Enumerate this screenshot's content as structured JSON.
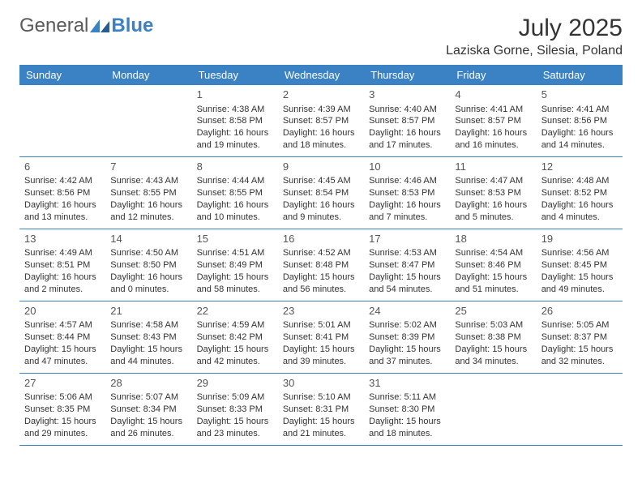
{
  "logo": {
    "text1": "General",
    "text2": "Blue"
  },
  "title": "July 2025",
  "location": "Laziska Gorne, Silesia, Poland",
  "colors": {
    "header_bg": "#3b82c4",
    "header_text": "#ffffff",
    "row_border": "#3b82c4",
    "text": "#333333",
    "muted": "#555555"
  },
  "typography": {
    "title_fontsize": 30,
    "location_fontsize": 16,
    "header_fontsize": 13,
    "daynum_fontsize": 13,
    "body_fontsize": 11
  },
  "dayNames": [
    "Sunday",
    "Monday",
    "Tuesday",
    "Wednesday",
    "Thursday",
    "Friday",
    "Saturday"
  ],
  "weeks": [
    [
      null,
      null,
      {
        "n": "1",
        "sr": "4:38 AM",
        "ss": "8:58 PM",
        "dl": "16 hours and 19 minutes."
      },
      {
        "n": "2",
        "sr": "4:39 AM",
        "ss": "8:57 PM",
        "dl": "16 hours and 18 minutes."
      },
      {
        "n": "3",
        "sr": "4:40 AM",
        "ss": "8:57 PM",
        "dl": "16 hours and 17 minutes."
      },
      {
        "n": "4",
        "sr": "4:41 AM",
        "ss": "8:57 PM",
        "dl": "16 hours and 16 minutes."
      },
      {
        "n": "5",
        "sr": "4:41 AM",
        "ss": "8:56 PM",
        "dl": "16 hours and 14 minutes."
      }
    ],
    [
      {
        "n": "6",
        "sr": "4:42 AM",
        "ss": "8:56 PM",
        "dl": "16 hours and 13 minutes."
      },
      {
        "n": "7",
        "sr": "4:43 AM",
        "ss": "8:55 PM",
        "dl": "16 hours and 12 minutes."
      },
      {
        "n": "8",
        "sr": "4:44 AM",
        "ss": "8:55 PM",
        "dl": "16 hours and 10 minutes."
      },
      {
        "n": "9",
        "sr": "4:45 AM",
        "ss": "8:54 PM",
        "dl": "16 hours and 9 minutes."
      },
      {
        "n": "10",
        "sr": "4:46 AM",
        "ss": "8:53 PM",
        "dl": "16 hours and 7 minutes."
      },
      {
        "n": "11",
        "sr": "4:47 AM",
        "ss": "8:53 PM",
        "dl": "16 hours and 5 minutes."
      },
      {
        "n": "12",
        "sr": "4:48 AM",
        "ss": "8:52 PM",
        "dl": "16 hours and 4 minutes."
      }
    ],
    [
      {
        "n": "13",
        "sr": "4:49 AM",
        "ss": "8:51 PM",
        "dl": "16 hours and 2 minutes."
      },
      {
        "n": "14",
        "sr": "4:50 AM",
        "ss": "8:50 PM",
        "dl": "16 hours and 0 minutes."
      },
      {
        "n": "15",
        "sr": "4:51 AM",
        "ss": "8:49 PM",
        "dl": "15 hours and 58 minutes."
      },
      {
        "n": "16",
        "sr": "4:52 AM",
        "ss": "8:48 PM",
        "dl": "15 hours and 56 minutes."
      },
      {
        "n": "17",
        "sr": "4:53 AM",
        "ss": "8:47 PM",
        "dl": "15 hours and 54 minutes."
      },
      {
        "n": "18",
        "sr": "4:54 AM",
        "ss": "8:46 PM",
        "dl": "15 hours and 51 minutes."
      },
      {
        "n": "19",
        "sr": "4:56 AM",
        "ss": "8:45 PM",
        "dl": "15 hours and 49 minutes."
      }
    ],
    [
      {
        "n": "20",
        "sr": "4:57 AM",
        "ss": "8:44 PM",
        "dl": "15 hours and 47 minutes."
      },
      {
        "n": "21",
        "sr": "4:58 AM",
        "ss": "8:43 PM",
        "dl": "15 hours and 44 minutes."
      },
      {
        "n": "22",
        "sr": "4:59 AM",
        "ss": "8:42 PM",
        "dl": "15 hours and 42 minutes."
      },
      {
        "n": "23",
        "sr": "5:01 AM",
        "ss": "8:41 PM",
        "dl": "15 hours and 39 minutes."
      },
      {
        "n": "24",
        "sr": "5:02 AM",
        "ss": "8:39 PM",
        "dl": "15 hours and 37 minutes."
      },
      {
        "n": "25",
        "sr": "5:03 AM",
        "ss": "8:38 PM",
        "dl": "15 hours and 34 minutes."
      },
      {
        "n": "26",
        "sr": "5:05 AM",
        "ss": "8:37 PM",
        "dl": "15 hours and 32 minutes."
      }
    ],
    [
      {
        "n": "27",
        "sr": "5:06 AM",
        "ss": "8:35 PM",
        "dl": "15 hours and 29 minutes."
      },
      {
        "n": "28",
        "sr": "5:07 AM",
        "ss": "8:34 PM",
        "dl": "15 hours and 26 minutes."
      },
      {
        "n": "29",
        "sr": "5:09 AM",
        "ss": "8:33 PM",
        "dl": "15 hours and 23 minutes."
      },
      {
        "n": "30",
        "sr": "5:10 AM",
        "ss": "8:31 PM",
        "dl": "15 hours and 21 minutes."
      },
      {
        "n": "31",
        "sr": "5:11 AM",
        "ss": "8:30 PM",
        "dl": "15 hours and 18 minutes."
      },
      null,
      null
    ]
  ],
  "labels": {
    "sunrise": "Sunrise: ",
    "sunset": "Sunset: ",
    "daylight": "Daylight: "
  }
}
